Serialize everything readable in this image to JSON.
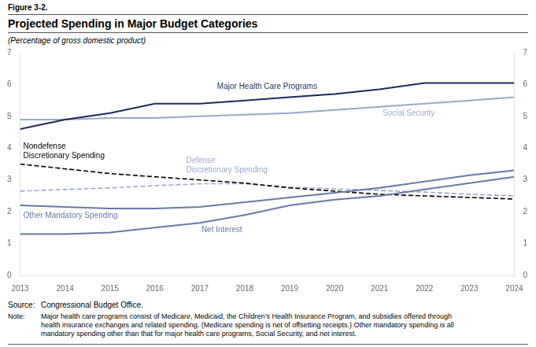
{
  "chart_data": {
    "type": "line",
    "figure_label": "Figure 3-2.",
    "title": "Projected Spending in Major Budget Categories",
    "subtitle": "(Percentage of gross domestic product)",
    "source_label": "Source:",
    "source": "Congressional Budget Office.",
    "note_label": "Note:",
    "note": "Major health care programs consist of Medicare, Medicaid, the Children’s Health Insurance Program, and subsidies offered through\nhealth insurance exchanges and related spending. (Medicare spending is net of offsetting receipts.) Other mandatory spending is all\nmandatory spending other than that for major health care programs, Social Security, and net interest.",
    "x": [
      2013,
      2014,
      2015,
      2016,
      2017,
      2018,
      2019,
      2020,
      2021,
      2022,
      2023,
      2024
    ],
    "series": [
      {
        "name": "Major Health Care Programs",
        "color": "#1a2b5e",
        "line_style": "solid",
        "values": [
          4.6,
          4.9,
          5.1,
          5.4,
          5.4,
          5.5,
          5.6,
          5.7,
          5.85,
          6.05,
          6.05,
          6.05
        ]
      },
      {
        "name": "Social Security",
        "color": "#9aa8c8",
        "line_style": "solid",
        "values": [
          4.9,
          4.9,
          4.95,
          4.95,
          5.0,
          5.05,
          5.1,
          5.2,
          5.3,
          5.4,
          5.5,
          5.6
        ]
      },
      {
        "name": "Other Mandatory Spending",
        "color": "#6878a8",
        "line_style": "solid",
        "values": [
          2.2,
          2.15,
          2.1,
          2.1,
          2.15,
          2.3,
          2.45,
          2.6,
          2.75,
          2.95,
          3.15,
          3.3
        ]
      },
      {
        "name": "Net Interest",
        "color": "#6878a8",
        "line_style": "solid",
        "values": [
          1.3,
          1.3,
          1.35,
          1.5,
          1.65,
          1.9,
          2.2,
          2.38,
          2.5,
          2.7,
          2.9,
          3.1
        ]
      },
      {
        "name": "Nondefense\nDiscretionary Spending",
        "color": "#000000",
        "line_style": "dashed",
        "values": [
          3.5,
          3.35,
          3.2,
          3.1,
          3.0,
          2.9,
          2.75,
          2.65,
          2.55,
          2.5,
          2.45,
          2.4
        ]
      },
      {
        "name": "Defense\nDiscretionary Spending",
        "color": "#9aa8c8",
        "line_style": "dashed",
        "values": [
          2.65,
          2.7,
          2.75,
          2.82,
          2.88,
          2.88,
          2.78,
          2.72,
          2.67,
          2.62,
          2.55,
          2.5
        ]
      }
    ],
    "xlim": [
      2013,
      2024
    ],
    "xticks": [
      2013,
      2014,
      2015,
      2016,
      2017,
      2018,
      2019,
      2020,
      2021,
      2022,
      2023,
      2024
    ],
    "ylim": [
      0,
      7
    ],
    "yticks": [
      0,
      1,
      2,
      3,
      4,
      5,
      6,
      7
    ],
    "y2lim": [
      0,
      7
    ],
    "y2ticks": [
      0,
      1,
      2,
      3,
      4,
      5,
      6,
      7
    ],
    "grid": false
  }
}
